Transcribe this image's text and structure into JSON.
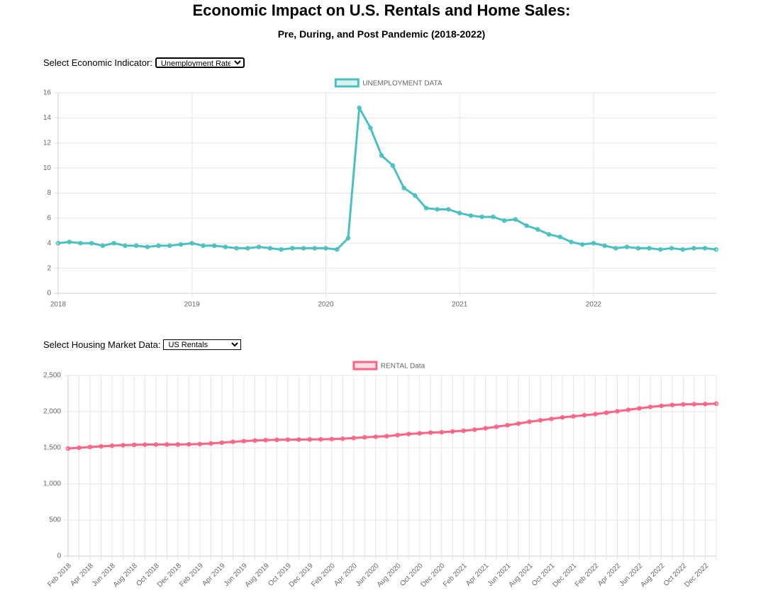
{
  "header": {
    "title": "Economic Impact on U.S. Rentals and Home Sales:",
    "subtitle": "Pre, During, and Post Pandemic (2018-2022)"
  },
  "controls": {
    "indicator_label": "Select Economic Indicator:",
    "indicator_option": "Unemployment Rate",
    "housing_label": "Select Housing Market Data:",
    "housing_option": "US Rentals"
  },
  "chart_data": [
    {
      "type": "line",
      "x": [
        "2018-01",
        "2018-02",
        "2018-03",
        "2018-04",
        "2018-05",
        "2018-06",
        "2018-07",
        "2018-08",
        "2018-09",
        "2018-10",
        "2018-11",
        "2018-12",
        "2019-01",
        "2019-02",
        "2019-03",
        "2019-04",
        "2019-05",
        "2019-06",
        "2019-07",
        "2019-08",
        "2019-09",
        "2019-10",
        "2019-11",
        "2019-12",
        "2020-01",
        "2020-02",
        "2020-03",
        "2020-04",
        "2020-05",
        "2020-06",
        "2020-07",
        "2020-08",
        "2020-09",
        "2020-10",
        "2020-11",
        "2020-12",
        "2021-01",
        "2021-02",
        "2021-03",
        "2021-04",
        "2021-05",
        "2021-06",
        "2021-07",
        "2021-08",
        "2021-09",
        "2021-10",
        "2021-11",
        "2021-12",
        "2022-01",
        "2022-02",
        "2022-03",
        "2022-04",
        "2022-05",
        "2022-06",
        "2022-07",
        "2022-08",
        "2022-09",
        "2022-10",
        "2022-11",
        "2022-12"
      ],
      "series": [
        {
          "name": "UNEMPLOYMENT DATA",
          "color": "#4bc0c0",
          "fill": "rgba(75,192,192,0.2)",
          "values": [
            4.0,
            4.1,
            4.0,
            4.0,
            3.8,
            4.0,
            3.8,
            3.8,
            3.7,
            3.8,
            3.8,
            3.9,
            4.0,
            3.8,
            3.8,
            3.7,
            3.6,
            3.6,
            3.7,
            3.6,
            3.5,
            3.6,
            3.6,
            3.6,
            3.6,
            3.5,
            4.4,
            14.8,
            13.2,
            11.0,
            10.2,
            8.4,
            7.8,
            6.8,
            6.7,
            6.7,
            6.4,
            6.2,
            6.1,
            6.1,
            5.8,
            5.9,
            5.4,
            5.1,
            4.7,
            4.5,
            4.1,
            3.9,
            4.0,
            3.8,
            3.6,
            3.7,
            3.6,
            3.6,
            3.5,
            3.6,
            3.5,
            3.6,
            3.6,
            3.5
          ]
        }
      ],
      "xlim": [
        "2018-01",
        "2022-12"
      ],
      "xticks": [
        {
          "value": "2018-01",
          "label": "2018"
        },
        {
          "value": "2019-01",
          "label": "2019"
        },
        {
          "value": "2020-01",
          "label": "2020"
        },
        {
          "value": "2021-01",
          "label": "2021"
        },
        {
          "value": "2022-01",
          "label": "2022"
        }
      ],
      "ylim": [
        0,
        16
      ],
      "yticks": [
        0,
        2,
        4,
        6,
        8,
        10,
        12,
        14,
        16
      ],
      "grid": true,
      "legend": "top"
    },
    {
      "type": "line",
      "categories": [
        "Feb 2018",
        null,
        "Apr 2018",
        null,
        "Jun 2018",
        null,
        "Aug 2018",
        null,
        "Oct 2018",
        null,
        "Dec 2018",
        null,
        "Feb 2019",
        null,
        "Apr 2019",
        null,
        "Jun 2019",
        null,
        "Aug 2019",
        null,
        "Oct 2019",
        null,
        "Dec 2019",
        null,
        "Feb 2020",
        null,
        "Apr 2020",
        null,
        "Jun 2020",
        null,
        "Aug 2020",
        null,
        "Oct 2020",
        null,
        "Dec 2020",
        null,
        "Feb 2021",
        null,
        "Apr 2021",
        null,
        "Jun 2021",
        null,
        "Aug 2021",
        null,
        "Oct 2021",
        null,
        "Dec 2021",
        null,
        "Feb 2022",
        null,
        "Apr 2022",
        null,
        "Jun 2022",
        null,
        "Aug 2022",
        null,
        "Oct 2022",
        null,
        "Dec 2022",
        null
      ],
      "series": [
        {
          "name": "RENTAL Data",
          "color": "#ff6384",
          "fill": "rgba(255,99,132,0.2)",
          "values": [
            1490,
            1500,
            1510,
            1520,
            1528,
            1535,
            1540,
            1543,
            1545,
            1545,
            1545,
            1548,
            1552,
            1560,
            1570,
            1582,
            1592,
            1600,
            1606,
            1610,
            1612,
            1613,
            1615,
            1617,
            1620,
            1625,
            1635,
            1645,
            1652,
            1660,
            1675,
            1690,
            1700,
            1710,
            1715,
            1725,
            1735,
            1750,
            1770,
            1790,
            1812,
            1835,
            1860,
            1880,
            1900,
            1920,
            1935,
            1950,
            1965,
            1985,
            2005,
            2025,
            2045,
            2065,
            2080,
            2092,
            2100,
            2103,
            2105,
            2110
          ]
        }
      ],
      "ylim": [
        0,
        2500
      ],
      "yticks": [
        0,
        500,
        {
          "value": 1000,
          "label": "1,000"
        },
        {
          "value": 1500,
          "label": "1,500"
        },
        {
          "value": 2000,
          "label": "2,000"
        },
        {
          "value": 2500,
          "label": "2,500"
        }
      ],
      "grid": true,
      "legend": "top"
    }
  ]
}
